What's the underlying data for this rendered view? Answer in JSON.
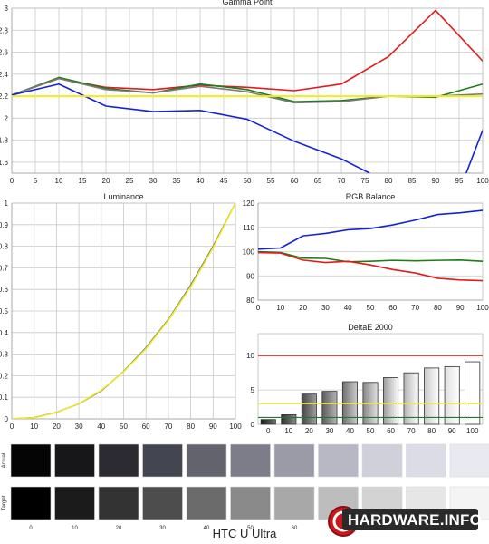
{
  "footer": {
    "device_name": "HTC U Ultra",
    "brand": "HARDWARE.INFO"
  },
  "colors": {
    "red": "#e11b1b",
    "green": "#1d7d16",
    "blue": "#1623d4",
    "gray": "#7a7a7a",
    "yellow": "#f2ec1c",
    "target_red": "#ea2b2b",
    "grid": "#c8c8c8"
  },
  "swatches": {
    "row_labels": [
      "Actual",
      "Target"
    ],
    "levels": [
      "0",
      "10",
      "20",
      "30",
      "40",
      "50",
      "60",
      "70",
      "80",
      "90",
      "100"
    ],
    "tick_labels": [
      "0",
      "10",
      "20",
      "30",
      "40",
      "50",
      "60"
    ],
    "actual": [
      "#050506",
      "#17171a",
      "#2b2b31",
      "#434550",
      "#62636d",
      "#7c7d89",
      "#9a9ba7",
      "#b8b8c5",
      "#cfd0da",
      "#dcdce6",
      "#e9e9f1"
    ],
    "target": [
      "#000000",
      "#1b1b1b",
      "#333333",
      "#4d4d4d",
      "#6b6b6b",
      "#8a8a8a",
      "#a8a8a8",
      "#bdbdbd",
      "#d3d3d3",
      "#e6e6e6",
      "#f4f4f4"
    ]
  },
  "chart_data": [
    {
      "id": "gamma",
      "type": "line",
      "title": "Gamma Point",
      "x": [
        0,
        10,
        20,
        30,
        40,
        50,
        60,
        70,
        80,
        90,
        95,
        100
      ],
      "x_ticks": [
        0,
        5,
        10,
        15,
        20,
        25,
        30,
        35,
        40,
        45,
        50,
        55,
        60,
        65,
        70,
        75,
        80,
        85,
        90,
        95,
        100
      ],
      "y_ticks": [
        1.6,
        1.8,
        2,
        2.2,
        2.4,
        2.6,
        2.8,
        3
      ],
      "xlim": [
        0,
        100
      ],
      "ylim": [
        1.5,
        3.0
      ],
      "grid": true,
      "series": [
        {
          "color": "red",
          "points": [
            [
              0,
              2.21
            ],
            [
              10,
              2.36
            ],
            [
              20,
              2.28
            ],
            [
              30,
              2.26
            ],
            [
              40,
              2.3
            ],
            [
              50,
              2.28
            ],
            [
              60,
              2.25
            ],
            [
              70,
              2.31
            ],
            [
              80,
              2.56
            ],
            [
              90,
              2.98
            ],
            [
              100,
              2.52
            ]
          ]
        },
        {
          "color": "green",
          "points": [
            [
              0,
              2.21
            ],
            [
              10,
              2.37
            ],
            [
              20,
              2.27
            ],
            [
              30,
              2.23
            ],
            [
              40,
              2.31
            ],
            [
              50,
              2.26
            ],
            [
              60,
              2.15
            ],
            [
              70,
              2.16
            ],
            [
              80,
              2.2
            ],
            [
              90,
              2.19
            ],
            [
              100,
              2.31
            ]
          ]
        },
        {
          "color": "gray",
          "points": [
            [
              0,
              2.21
            ],
            [
              10,
              2.36
            ],
            [
              20,
              2.26
            ],
            [
              30,
              2.23
            ],
            [
              40,
              2.29
            ],
            [
              50,
              2.24
            ],
            [
              60,
              2.14
            ],
            [
              70,
              2.15
            ],
            [
              80,
              2.2
            ],
            [
              90,
              2.2
            ],
            [
              100,
              2.22
            ]
          ]
        },
        {
          "color": "blue",
          "points": [
            [
              0,
              2.21
            ],
            [
              10,
              2.31
            ],
            [
              20,
              2.11
            ],
            [
              30,
              2.06
            ],
            [
              40,
              2.07
            ],
            [
              50,
              1.99
            ],
            [
              60,
              1.79
            ],
            [
              70,
              1.63
            ],
            [
              76,
              1.5
            ]
          ]
        },
        {
          "color": "blue",
          "points": [
            [
              96.5,
              1.5
            ],
            [
              100,
              1.89
            ]
          ]
        },
        {
          "color": "yellow",
          "width": 2,
          "points": [
            [
              0,
              2.2
            ],
            [
              100,
              2.2
            ]
          ]
        }
      ]
    },
    {
      "id": "luminance",
      "type": "line",
      "title": "Luminance",
      "x": [
        0,
        10,
        20,
        30,
        40,
        50,
        60,
        70,
        80,
        90,
        100
      ],
      "x_ticks": [
        0,
        10,
        20,
        30,
        40,
        50,
        60,
        70,
        80,
        90,
        100
      ],
      "y_ticks": [
        0,
        0.1,
        0.2,
        0.3,
        0.4,
        0.5,
        0.6,
        0.7,
        0.8,
        0.9,
        1
      ],
      "xlim": [
        0,
        100
      ],
      "ylim": [
        0,
        1
      ],
      "grid": true,
      "series": [
        {
          "color": "gray",
          "width": 1.5,
          "points": [
            [
              0,
              0
            ],
            [
              10,
              0.006
            ],
            [
              20,
              0.03
            ],
            [
              30,
              0.07
            ],
            [
              40,
              0.13
            ],
            [
              50,
              0.22
            ],
            [
              60,
              0.33
            ],
            [
              70,
              0.46
            ],
            [
              80,
              0.62
            ],
            [
              90,
              0.8
            ],
            [
              100,
              1.0
            ]
          ]
        },
        {
          "color": "yellow",
          "width": 1.5,
          "points": [
            [
              0,
              0
            ],
            [
              10,
              0.005
            ],
            [
              20,
              0.029
            ],
            [
              30,
              0.071
            ],
            [
              40,
              0.133
            ],
            [
              50,
              0.218
            ],
            [
              60,
              0.325
            ],
            [
              70,
              0.456
            ],
            [
              80,
              0.612
            ],
            [
              90,
              0.793
            ],
            [
              100,
              1.0
            ]
          ]
        }
      ]
    },
    {
      "id": "rgb",
      "type": "line",
      "title": "RGB Balance",
      "x": [
        0,
        10,
        20,
        30,
        40,
        50,
        60,
        70,
        80,
        90,
        100
      ],
      "x_ticks": [
        0,
        10,
        20,
        30,
        40,
        50,
        60,
        70,
        80,
        90,
        100
      ],
      "y_ticks": [
        80,
        90,
        100,
        110,
        120
      ],
      "xlim": [
        0,
        100
      ],
      "ylim": [
        80,
        120
      ],
      "grid": true,
      "series": [
        {
          "color": "blue",
          "points": [
            [
              0,
              101
            ],
            [
              10,
              101.5
            ],
            [
              20,
              106.5
            ],
            [
              30,
              107.5
            ],
            [
              40,
              109
            ],
            [
              50,
              109.5
            ],
            [
              60,
              111
            ],
            [
              70,
              113
            ],
            [
              80,
              115.3
            ],
            [
              90,
              116
            ],
            [
              100,
              117
            ]
          ]
        },
        {
          "color": "green",
          "points": [
            [
              0,
              100
            ],
            [
              10,
              99.6
            ],
            [
              20,
              97.3
            ],
            [
              30,
              97.2
            ],
            [
              40,
              95.8
            ],
            [
              50,
              96
            ],
            [
              60,
              96.4
            ],
            [
              70,
              96.2
            ],
            [
              80,
              96.4
            ],
            [
              90,
              96.5
            ],
            [
              100,
              96
            ]
          ]
        },
        {
          "color": "red",
          "points": [
            [
              0,
              99.6
            ],
            [
              10,
              99.4
            ],
            [
              20,
              96.5
            ],
            [
              30,
              95.5
            ],
            [
              40,
              96
            ],
            [
              50,
              94.5
            ],
            [
              60,
              92.6
            ],
            [
              70,
              91.2
            ],
            [
              80,
              89
            ],
            [
              90,
              88.3
            ],
            [
              100,
              88
            ]
          ]
        }
      ]
    },
    {
      "id": "deltae",
      "type": "bar",
      "title": "DeltaE 2000",
      "categories": [
        "0",
        "10",
        "20",
        "30",
        "40",
        "50",
        "60",
        "70",
        "80",
        "90",
        "100"
      ],
      "values": [
        0.7,
        1.4,
        4.4,
        4.8,
        6.2,
        6.1,
        6.8,
        7.5,
        8.2,
        8.4,
        9.1
      ],
      "y_ticks": [
        0,
        5,
        10
      ],
      "ylim": [
        0,
        13.2
      ],
      "grid": true,
      "reference_lines": [
        {
          "value": 10,
          "color": "target_red"
        },
        {
          "value": 3,
          "color": "yellow"
        },
        {
          "value": 1,
          "color": "green"
        }
      ]
    }
  ]
}
